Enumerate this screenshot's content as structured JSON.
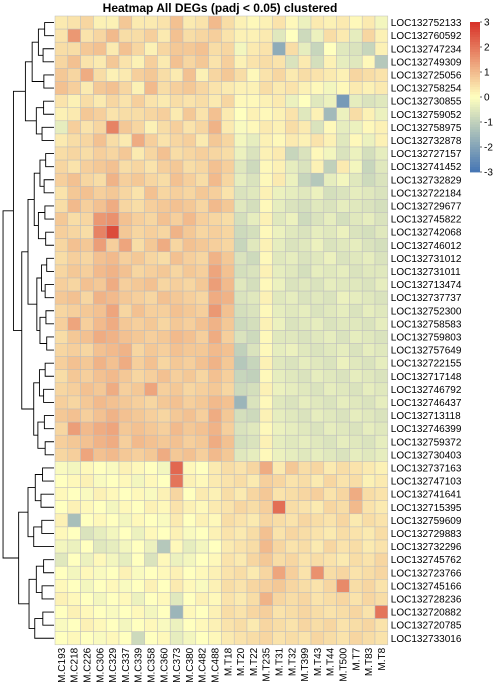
{
  "chart_data": {
    "type": "heatmap",
    "title": "Heatmap All DEGs (padj < 0.05) clustered",
    "rows": [
      "LOC132752133",
      "LOC132760592",
      "LOC132747234",
      "LOC132749309",
      "LOC132725056",
      "LOC132758254",
      "LOC132730855",
      "LOC132759052",
      "LOC132758975",
      "LOC132732878",
      "LOC132727157",
      "LOC132741452",
      "LOC132732829",
      "LOC132722184",
      "LOC132729677",
      "LOC132745822",
      "LOC132742068",
      "LOC132746012",
      "LOC132731012",
      "LOC132731011",
      "LOC132713474",
      "LOC132737737",
      "LOC132752300",
      "LOC132758583",
      "LOC132759803",
      "LOC132757649",
      "LOC132722155",
      "LOC132717148",
      "LOC132746792",
      "LOC132746437",
      "LOC132713118",
      "LOC132746399",
      "LOC132759372",
      "LOC132730403",
      "LOC132737163",
      "LOC132747103",
      "LOC132741641",
      "LOC132715395",
      "LOC132759609",
      "LOC132729883",
      "LOC132732296",
      "LOC132745762",
      "LOC132723766",
      "LOC132745166",
      "LOC132728236",
      "LOC132720882",
      "LOC132720785",
      "LOC132733016"
    ],
    "columns": [
      "M.C193",
      "M.C218",
      "M.C226",
      "M.C306",
      "M.C329",
      "M.C337",
      "M.C339",
      "M.C358",
      "M.C360",
      "M.C373",
      "M.C380",
      "M.C482",
      "M.C488",
      "M.T18",
      "M.T20",
      "M.T22",
      "M.T235",
      "M.T31",
      "M.T32",
      "M.T399",
      "M.T43",
      "M.T44",
      "M.T500",
      "M.T7",
      "M.T83",
      "M.T8"
    ],
    "color_scale": {
      "min": -3,
      "max": 3,
      "ticks": [
        3,
        2,
        1,
        0,
        -1,
        -2,
        -3
      ],
      "low": "#4575b4",
      "mid": "#ffffbf",
      "high": "#d73027"
    },
    "values": [
      [
        0.3,
        0.4,
        0.6,
        0.2,
        0.2,
        0.8,
        0.3,
        0.3,
        0.4,
        0.9,
        0.3,
        0.4,
        1.0,
        0.5,
        0.2,
        0.1,
        0.2,
        0.4,
        0.1,
        -0.3,
        0.3,
        0.2,
        0.3,
        0.1,
        0.3,
        -0.2
      ],
      [
        0.4,
        1.5,
        0.4,
        0.6,
        1.0,
        0.5,
        0.5,
        0.7,
        0.3,
        0.9,
        0.5,
        0.6,
        0.7,
        0.4,
        0.2,
        0.2,
        0.3,
        -0.5,
        0.0,
        -0.8,
        -0.3,
        0.5,
        0.3,
        -0.4,
        0.6,
        0.2
      ],
      [
        0.5,
        0.5,
        0.8,
        0.9,
        0.3,
        0.9,
        0.6,
        0.2,
        0.6,
        0.8,
        0.8,
        0.9,
        0.5,
        0.6,
        -0.2,
        0.3,
        0.4,
        -1.8,
        0.5,
        -0.4,
        -0.9,
        0.0,
        -0.5,
        -0.6,
        -0.9,
        0.2
      ],
      [
        0.6,
        0.9,
        0.4,
        0.3,
        0.8,
        0.4,
        0.2,
        0.7,
        0.3,
        0.9,
        0.6,
        0.8,
        0.4,
        0.7,
        0.2,
        0.4,
        0.5,
        0.4,
        -0.6,
        0.3,
        -0.7,
        0.2,
        -0.4,
        -0.5,
        0.1,
        -1.2
      ],
      [
        0.8,
        0.6,
        1.2,
        0.5,
        0.2,
        0.3,
        0.7,
        0.8,
        0.5,
        0.3,
        0.9,
        0.2,
        0.6,
        0.8,
        0.5,
        0.1,
        0.4,
        0.6,
        0.3,
        0.5,
        0.4,
        0.3,
        0.2,
        0.6,
        0.5,
        0.4
      ],
      [
        0.9,
        0.7,
        0.3,
        0.8,
        0.9,
        0.6,
        0.2,
        1.0,
        0.5,
        0.7,
        0.8,
        0.6,
        0.4,
        0.3,
        0.2,
        0.2,
        0.5,
        0.3,
        0.4,
        0.2,
        0.1,
        -0.2,
        0.1,
        0.3,
        0.2,
        0.3
      ],
      [
        0.4,
        0.2,
        0.5,
        0.3,
        0.6,
        0.4,
        0.7,
        0.4,
        0.3,
        0.5,
        0.4,
        0.5,
        0.3,
        0.6,
        0.1,
        0.1,
        0.2,
        0.3,
        -0.3,
        0.0,
        -0.5,
        -0.3,
        -2.2,
        -0.4,
        -0.6,
        -0.5
      ],
      [
        0.2,
        0.3,
        0.8,
        0.7,
        0.4,
        0.5,
        0.5,
        0.6,
        0.7,
        0.3,
        0.8,
        0.4,
        0.9,
        0.3,
        0.0,
        0.2,
        0.1,
        0.2,
        0.4,
        -0.5,
        0.2,
        -1.5,
        -0.3,
        0.5,
        0.2,
        -0.3
      ],
      [
        -0.4,
        0.7,
        0.4,
        0.6,
        1.8,
        0.8,
        0.6,
        0.2,
        0.5,
        0.7,
        0.4,
        0.6,
        1.1,
        0.3,
        -0.1,
        0.1,
        0.3,
        0.2,
        0.5,
        0.3,
        -0.6,
        0.1,
        -0.4,
        -0.3,
        0.1,
        0.2
      ],
      [
        0.3,
        0.5,
        0.6,
        0.9,
        0.5,
        0.3,
        1.2,
        0.7,
        0.4,
        0.6,
        0.7,
        0.3,
        0.8,
        0.6,
        -0.2,
        -0.4,
        0.2,
        0.1,
        0.3,
        0.2,
        0.4,
        0.2,
        -0.5,
        0.1,
        -0.3,
        0.2
      ],
      [
        0.5,
        0.6,
        0.5,
        0.7,
        0.6,
        0.8,
        0.3,
        0.6,
        0.9,
        0.5,
        0.6,
        0.7,
        0.6,
        0.5,
        -0.3,
        -0.6,
        0.2,
        0.3,
        -0.9,
        -0.6,
        0.1,
        -0.2,
        -0.6,
        -0.3,
        -0.7,
        -0.4
      ],
      [
        0.6,
        0.4,
        0.7,
        0.8,
        0.9,
        0.5,
        0.6,
        0.4,
        0.7,
        0.8,
        0.5,
        0.6,
        0.9,
        0.7,
        -0.5,
        -0.8,
        0.1,
        0.2,
        -0.4,
        -0.6,
        0.2,
        -1.0,
        0.3,
        -0.2,
        -0.9,
        -0.5
      ],
      [
        0.7,
        0.9,
        0.6,
        0.5,
        1.1,
        0.7,
        0.8,
        0.6,
        0.5,
        0.9,
        0.7,
        0.5,
        1.0,
        0.6,
        -0.4,
        -0.6,
        0.1,
        0.3,
        -0.3,
        -0.9,
        -1.2,
        -0.4,
        -0.2,
        -0.5,
        -0.8,
        -0.6
      ],
      [
        0.4,
        0.8,
        0.9,
        0.7,
        0.8,
        0.6,
        0.4,
        0.9,
        0.6,
        0.7,
        0.6,
        0.8,
        0.7,
        0.4,
        -0.6,
        -0.5,
        0.2,
        -0.3,
        -0.4,
        -0.5,
        -0.3,
        -0.7,
        -0.6,
        -0.4,
        -0.5,
        -0.6
      ],
      [
        0.5,
        1.0,
        0.7,
        0.9,
        1.2,
        0.6,
        0.5,
        0.7,
        0.8,
        0.9,
        0.8,
        0.6,
        1.0,
        0.8,
        -0.5,
        -0.7,
        0.1,
        -0.4,
        -0.6,
        -0.7,
        -0.5,
        -0.6,
        -0.4,
        -0.5,
        -0.6,
        -0.7
      ],
      [
        0.8,
        0.5,
        0.6,
        1.5,
        1.6,
        0.9,
        0.7,
        0.6,
        0.9,
        0.7,
        1.0,
        0.7,
        0.6,
        0.5,
        -0.7,
        -0.4,
        0.2,
        -0.5,
        -0.3,
        -0.8,
        -0.6,
        -0.4,
        -0.7,
        -0.5,
        -0.4,
        -0.6
      ],
      [
        0.7,
        0.6,
        0.5,
        1.8,
        2.6,
        0.8,
        0.6,
        0.7,
        0.6,
        1.1,
        0.8,
        0.6,
        0.7,
        0.6,
        -0.8,
        -0.7,
        0.1,
        -0.3,
        -0.5,
        -0.6,
        -0.4,
        -0.5,
        -0.3,
        -0.6,
        -0.7,
        -0.5
      ],
      [
        0.6,
        0.9,
        0.8,
        1.4,
        0.7,
        1.3,
        0.5,
        0.8,
        1.2,
        0.6,
        0.9,
        0.8,
        0.7,
        0.6,
        -0.9,
        -0.5,
        0.2,
        -0.4,
        -0.6,
        -0.5,
        -0.3,
        -0.6,
        -0.5,
        -0.4,
        -0.6,
        -0.7
      ],
      [
        0.5,
        0.7,
        0.6,
        0.9,
        1.0,
        0.7,
        0.8,
        0.6,
        0.5,
        0.9,
        0.7,
        0.6,
        1.1,
        0.8,
        -0.6,
        -0.8,
        0.1,
        -0.5,
        -0.4,
        -0.6,
        -0.5,
        -0.3,
        -0.6,
        -0.5,
        -0.4,
        -0.6
      ],
      [
        0.6,
        0.8,
        0.7,
        1.0,
        1.1,
        0.9,
        0.6,
        0.7,
        0.8,
        0.6,
        0.8,
        0.7,
        1.3,
        0.9,
        -0.7,
        -0.6,
        0.2,
        -0.4,
        -0.5,
        -0.7,
        -0.4,
        -0.5,
        -0.4,
        -0.6,
        -0.5,
        -0.5
      ],
      [
        0.7,
        0.6,
        0.9,
        0.8,
        1.2,
        0.7,
        0.8,
        0.9,
        0.6,
        0.7,
        0.6,
        0.8,
        1.4,
        1.0,
        -0.5,
        -0.7,
        0.1,
        -0.3,
        -0.6,
        -0.5,
        -0.6,
        -0.4,
        -0.5,
        -0.5,
        -0.6,
        -0.4
      ],
      [
        0.8,
        0.9,
        0.6,
        1.1,
        1.0,
        0.8,
        0.7,
        0.6,
        0.9,
        0.8,
        0.7,
        0.6,
        1.2,
        1.1,
        -0.6,
        -0.5,
        0.2,
        -0.5,
        -0.4,
        -0.6,
        -0.5,
        -0.6,
        -0.3,
        -0.4,
        -0.5,
        -0.6
      ],
      [
        0.6,
        0.7,
        0.8,
        0.9,
        1.3,
        0.6,
        0.9,
        0.7,
        0.7,
        0.9,
        0.8,
        0.7,
        1.5,
        0.9,
        -0.7,
        -0.6,
        0.1,
        -0.4,
        -0.5,
        -0.4,
        -0.6,
        -0.5,
        -0.4,
        -0.6,
        -0.4,
        -0.5
      ],
      [
        0.7,
        1.3,
        0.7,
        1.0,
        1.2,
        0.8,
        0.7,
        0.8,
        0.6,
        0.8,
        0.7,
        0.9,
        1.1,
        0.8,
        -0.8,
        -0.7,
        0.2,
        -0.3,
        -0.6,
        -0.5,
        -0.4,
        -0.6,
        -0.5,
        -0.5,
        -0.6,
        -0.4
      ],
      [
        0.5,
        0.8,
        0.9,
        1.2,
        1.1,
        0.9,
        0.8,
        0.7,
        0.8,
        1.0,
        0.9,
        0.7,
        1.2,
        0.7,
        -0.6,
        -0.8,
        0.1,
        -0.5,
        -0.5,
        -0.6,
        -0.5,
        -0.4,
        -0.6,
        -0.4,
        -0.5,
        -0.6
      ],
      [
        0.6,
        0.7,
        0.6,
        0.9,
        1.0,
        1.1,
        0.6,
        0.8,
        0.7,
        0.9,
        0.8,
        0.8,
        1.0,
        0.9,
        -1.0,
        -0.6,
        0.1,
        -0.4,
        -0.3,
        -0.5,
        -0.6,
        -0.5,
        -0.4,
        -0.6,
        -0.4,
        -0.5
      ],
      [
        0.7,
        0.9,
        0.8,
        1.1,
        0.9,
        1.2,
        0.7,
        0.9,
        0.6,
        0.8,
        0.7,
        0.9,
        1.1,
        0.8,
        -1.2,
        -0.9,
        0.2,
        -0.5,
        -0.6,
        -0.4,
        -0.5,
        -0.6,
        -0.3,
        -0.5,
        -0.6,
        -0.4
      ],
      [
        0.5,
        0.8,
        0.7,
        0.9,
        1.0,
        0.8,
        0.6,
        0.7,
        0.9,
        0.7,
        0.8,
        0.6,
        0.9,
        0.7,
        -0.9,
        -1.0,
        0.1,
        -0.4,
        -0.5,
        -0.6,
        -0.4,
        -0.5,
        -0.6,
        -0.4,
        -0.5,
        -0.6
      ],
      [
        0.6,
        0.7,
        0.9,
        0.8,
        1.2,
        0.7,
        0.8,
        1.3,
        0.7,
        0.8,
        0.6,
        0.7,
        0.8,
        0.6,
        -0.8,
        -0.7,
        0.2,
        -0.3,
        -0.4,
        -0.5,
        -0.6,
        -0.4,
        -0.5,
        -0.6,
        -0.4,
        -0.5
      ],
      [
        0.7,
        0.6,
        0.8,
        1.0,
        0.9,
        0.8,
        0.7,
        0.6,
        0.8,
        0.9,
        0.7,
        0.8,
        1.0,
        0.9,
        -1.6,
        -0.6,
        0.1,
        -0.5,
        -0.6,
        -0.4,
        -0.5,
        -0.6,
        -0.4,
        -0.5,
        -0.6,
        -0.4
      ],
      [
        0.8,
        0.9,
        0.7,
        0.9,
        1.1,
        0.9,
        0.8,
        0.7,
        0.6,
        0.8,
        0.9,
        0.7,
        1.2,
        0.8,
        -0.7,
        -0.8,
        0.2,
        -0.4,
        -0.5,
        -0.6,
        -0.4,
        -0.5,
        -0.6,
        -0.4,
        -0.5,
        -0.6
      ],
      [
        0.6,
        1.4,
        1.0,
        1.2,
        1.3,
        0.8,
        0.9,
        0.8,
        0.7,
        1.0,
        0.8,
        0.9,
        1.1,
        0.7,
        -0.6,
        -0.5,
        0.1,
        -0.3,
        -0.4,
        -0.5,
        -0.6,
        -0.4,
        -0.5,
        -0.6,
        -0.4,
        -0.5
      ],
      [
        0.7,
        0.8,
        0.9,
        1.1,
        1.2,
        0.7,
        1.0,
        0.9,
        0.8,
        0.9,
        0.7,
        0.8,
        1.2,
        0.9,
        -0.7,
        -0.6,
        0.2,
        -0.4,
        -0.5,
        -0.4,
        -0.5,
        -0.6,
        -0.4,
        -0.5,
        -0.6,
        -0.4
      ],
      [
        0.6,
        0.7,
        1.3,
        0.9,
        1.0,
        0.8,
        0.7,
        0.8,
        1.2,
        0.8,
        0.9,
        0.7,
        1.0,
        0.8,
        -0.5,
        -0.4,
        0.1,
        -0.3,
        -0.4,
        -0.5,
        -0.4,
        -0.5,
        -0.6,
        -0.4,
        -0.5,
        -0.4
      ],
      [
        -0.1,
        -0.2,
        0.1,
        0.0,
        -0.1,
        0.2,
        0.1,
        0.0,
        -0.2,
        2.2,
        0.1,
        0.0,
        0.3,
        0.5,
        0.4,
        0.6,
        1.2,
        0.3,
        0.8,
        0.5,
        0.6,
        0.3,
        0.5,
        0.4,
        0.3,
        0.2
      ],
      [
        0.0,
        0.1,
        0.2,
        -0.1,
        0.0,
        0.1,
        -0.2,
        0.1,
        0.0,
        2.0,
        0.2,
        0.1,
        0.3,
        0.4,
        0.5,
        0.3,
        0.7,
        0.6,
        0.4,
        0.5,
        0.3,
        0.6,
        0.4,
        0.5,
        0.2,
        0.3
      ],
      [
        0.1,
        0.0,
        -0.1,
        0.2,
        0.1,
        0.0,
        0.1,
        -0.1,
        0.2,
        0.6,
        0.0,
        0.3,
        0.2,
        0.5,
        0.3,
        0.6,
        0.8,
        0.4,
        0.5,
        0.6,
        0.7,
        0.4,
        0.6,
        1.2,
        0.5,
        0.4
      ],
      [
        0.0,
        0.2,
        0.1,
        0.0,
        -0.2,
        0.1,
        0.0,
        0.2,
        0.1,
        0.4,
        0.2,
        0.1,
        0.3,
        0.4,
        0.6,
        0.5,
        0.7,
        2.1,
        0.5,
        0.4,
        0.3,
        0.6,
        0.5,
        1.0,
        0.4,
        0.3
      ],
      [
        0.2,
        -1.4,
        0.0,
        0.1,
        0.0,
        -0.2,
        0.1,
        0.0,
        -0.1,
        0.3,
        0.0,
        0.2,
        0.1,
        0.5,
        0.4,
        0.3,
        0.6,
        0.5,
        0.4,
        0.6,
        0.5,
        0.4,
        0.6,
        0.3,
        0.5,
        0.4
      ],
      [
        0.1,
        0.0,
        -0.6,
        -0.4,
        -0.2,
        0.0,
        -0.3,
        0.1,
        0.0,
        0.2,
        -0.1,
        0.0,
        0.2,
        0.4,
        0.3,
        0.5,
        0.9,
        0.4,
        0.6,
        0.5,
        0.4,
        0.3,
        0.5,
        0.4,
        0.3,
        0.5
      ],
      [
        -0.2,
        -0.3,
        0.0,
        -0.5,
        -0.4,
        -0.2,
        0.0,
        -0.3,
        -1.2,
        0.1,
        -0.4,
        -0.2,
        0.0,
        0.3,
        0.4,
        0.5,
        1.0,
        0.6,
        0.4,
        0.5,
        0.3,
        0.6,
        0.4,
        0.5,
        0.3,
        0.4
      ],
      [
        -0.5,
        0.0,
        -0.3,
        0.1,
        -0.2,
        -0.4,
        0.0,
        -0.6,
        0.1,
        -0.3,
        -0.2,
        0.0,
        0.1,
        0.4,
        0.3,
        0.6,
        0.8,
        0.5,
        0.6,
        0.4,
        0.5,
        0.4,
        0.3,
        0.5,
        0.4,
        0.6
      ],
      [
        0.0,
        -0.2,
        0.1,
        -0.1,
        0.0,
        0.2,
        -0.1,
        0.0,
        0.1,
        0.2,
        0.0,
        0.1,
        0.2,
        0.4,
        0.5,
        0.3,
        0.6,
        1.3,
        0.7,
        0.4,
        1.6,
        0.5,
        0.6,
        0.4,
        0.5,
        0.6
      ],
      [
        0.1,
        0.0,
        -0.2,
        0.0,
        0.1,
        -0.1,
        0.0,
        0.2,
        0.0,
        0.3,
        0.1,
        -0.1,
        0.2,
        0.5,
        0.4,
        0.6,
        0.7,
        0.8,
        0.6,
        0.5,
        0.4,
        0.6,
        1.7,
        0.5,
        0.6,
        0.4
      ],
      [
        0.2,
        0.1,
        0.0,
        -0.2,
        0.0,
        0.1,
        -0.3,
        0.0,
        0.1,
        -0.5,
        0.0,
        0.2,
        0.1,
        0.4,
        0.3,
        0.5,
        1.1,
        0.6,
        0.5,
        0.6,
        0.4,
        0.5,
        0.6,
        0.4,
        0.6,
        0.5
      ],
      [
        0.0,
        0.2,
        0.1,
        0.0,
        -0.1,
        0.0,
        0.1,
        -0.2,
        0.0,
        -1.6,
        0.1,
        0.0,
        0.2,
        0.5,
        0.4,
        0.6,
        0.7,
        0.4,
        0.5,
        0.6,
        0.5,
        0.4,
        0.5,
        0.6,
        0.4,
        2.0
      ],
      [
        -0.1,
        0.0,
        0.2,
        0.1,
        0.0,
        -0.2,
        0.0,
        0.1,
        -0.1,
        -0.3,
        0.0,
        0.1,
        0.2,
        0.4,
        0.5,
        0.3,
        0.6,
        0.5,
        0.4,
        0.6,
        0.5,
        0.6,
        0.4,
        0.5,
        0.6,
        0.4
      ],
      [
        0.0,
        0.1,
        0.0,
        -0.1,
        0.1,
        0.0,
        -0.8,
        0.0,
        0.1,
        -0.4,
        -0.2,
        0.0,
        0.1,
        0.3,
        0.4,
        0.5,
        0.6,
        0.4,
        0.5,
        0.4,
        0.6,
        0.5,
        0.4,
        0.6,
        0.5,
        0.4
      ]
    ]
  }
}
